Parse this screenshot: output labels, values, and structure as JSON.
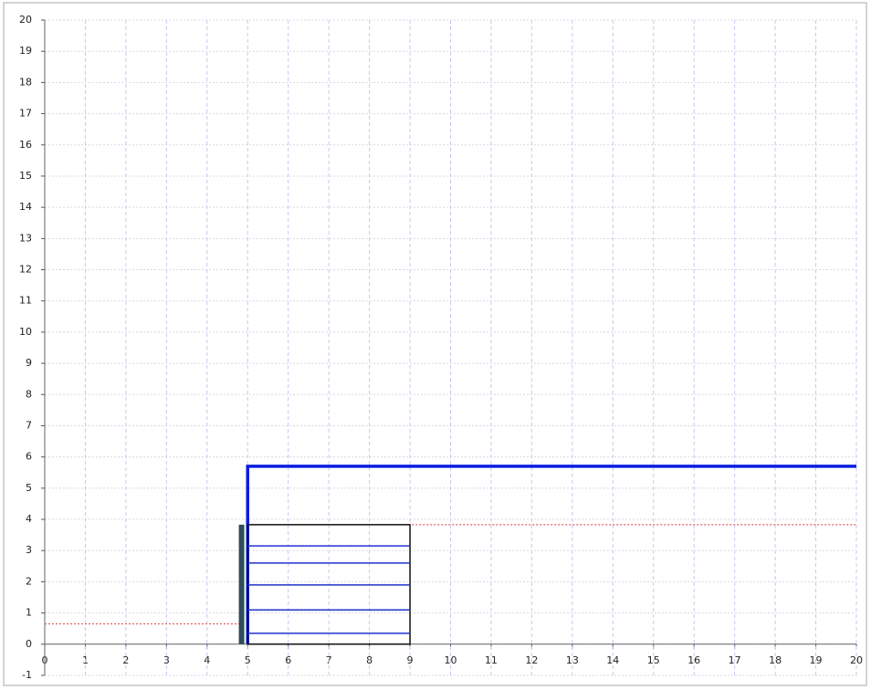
{
  "chart_data": {
    "type": "line",
    "xlim": [
      0,
      20
    ],
    "ylim": [
      -1,
      20
    ],
    "xticks": [
      0,
      1,
      2,
      3,
      4,
      5,
      6,
      7,
      8,
      9,
      10,
      11,
      12,
      13,
      14,
      15,
      16,
      17,
      18,
      19,
      20
    ],
    "yticks": [
      -1,
      0,
      1,
      2,
      3,
      4,
      5,
      6,
      7,
      8,
      9,
      10,
      11,
      12,
      13,
      14,
      15,
      16,
      17,
      18,
      19,
      20
    ],
    "grid": true,
    "series": [
      {
        "color": "#e05a5a",
        "style": "dotted",
        "x": [
          0,
          4.85
        ],
        "values": [
          0.65,
          0.65
        ]
      },
      {
        "color": "#e05a5a",
        "style": "dotted",
        "x": [
          5,
          20
        ],
        "values": [
          3.83,
          3.83
        ]
      },
      {
        "color": "#0a1ee0",
        "style": "thick",
        "x": [
          5,
          5,
          20
        ],
        "values": [
          0,
          5.7,
          5.7
        ]
      },
      {
        "color": "#2f4d5c",
        "style": "wall",
        "x": [
          4.85,
          4.85
        ],
        "values": [
          0,
          3.83
        ]
      },
      {
        "color": "#111111",
        "style": "solid",
        "x": [
          5,
          9,
          9,
          5,
          5
        ],
        "values": [
          0,
          0,
          3.83,
          3.83,
          0
        ]
      },
      {
        "color": "#2233cc",
        "style": "solid",
        "x": [
          5,
          9
        ],
        "values": [
          0.35,
          0.35
        ]
      },
      {
        "color": "#2233cc",
        "style": "solid",
        "x": [
          5,
          9
        ],
        "values": [
          1.1,
          1.1
        ]
      },
      {
        "color": "#2233cc",
        "style": "solid",
        "x": [
          5,
          9
        ],
        "values": [
          1.9,
          1.9
        ]
      },
      {
        "color": "#2233cc",
        "style": "solid",
        "x": [
          5,
          9
        ],
        "values": [
          2.6,
          2.6
        ]
      },
      {
        "color": "#2233cc",
        "style": "solid",
        "x": [
          5,
          9
        ],
        "values": [
          3.15,
          3.15
        ]
      }
    ]
  }
}
